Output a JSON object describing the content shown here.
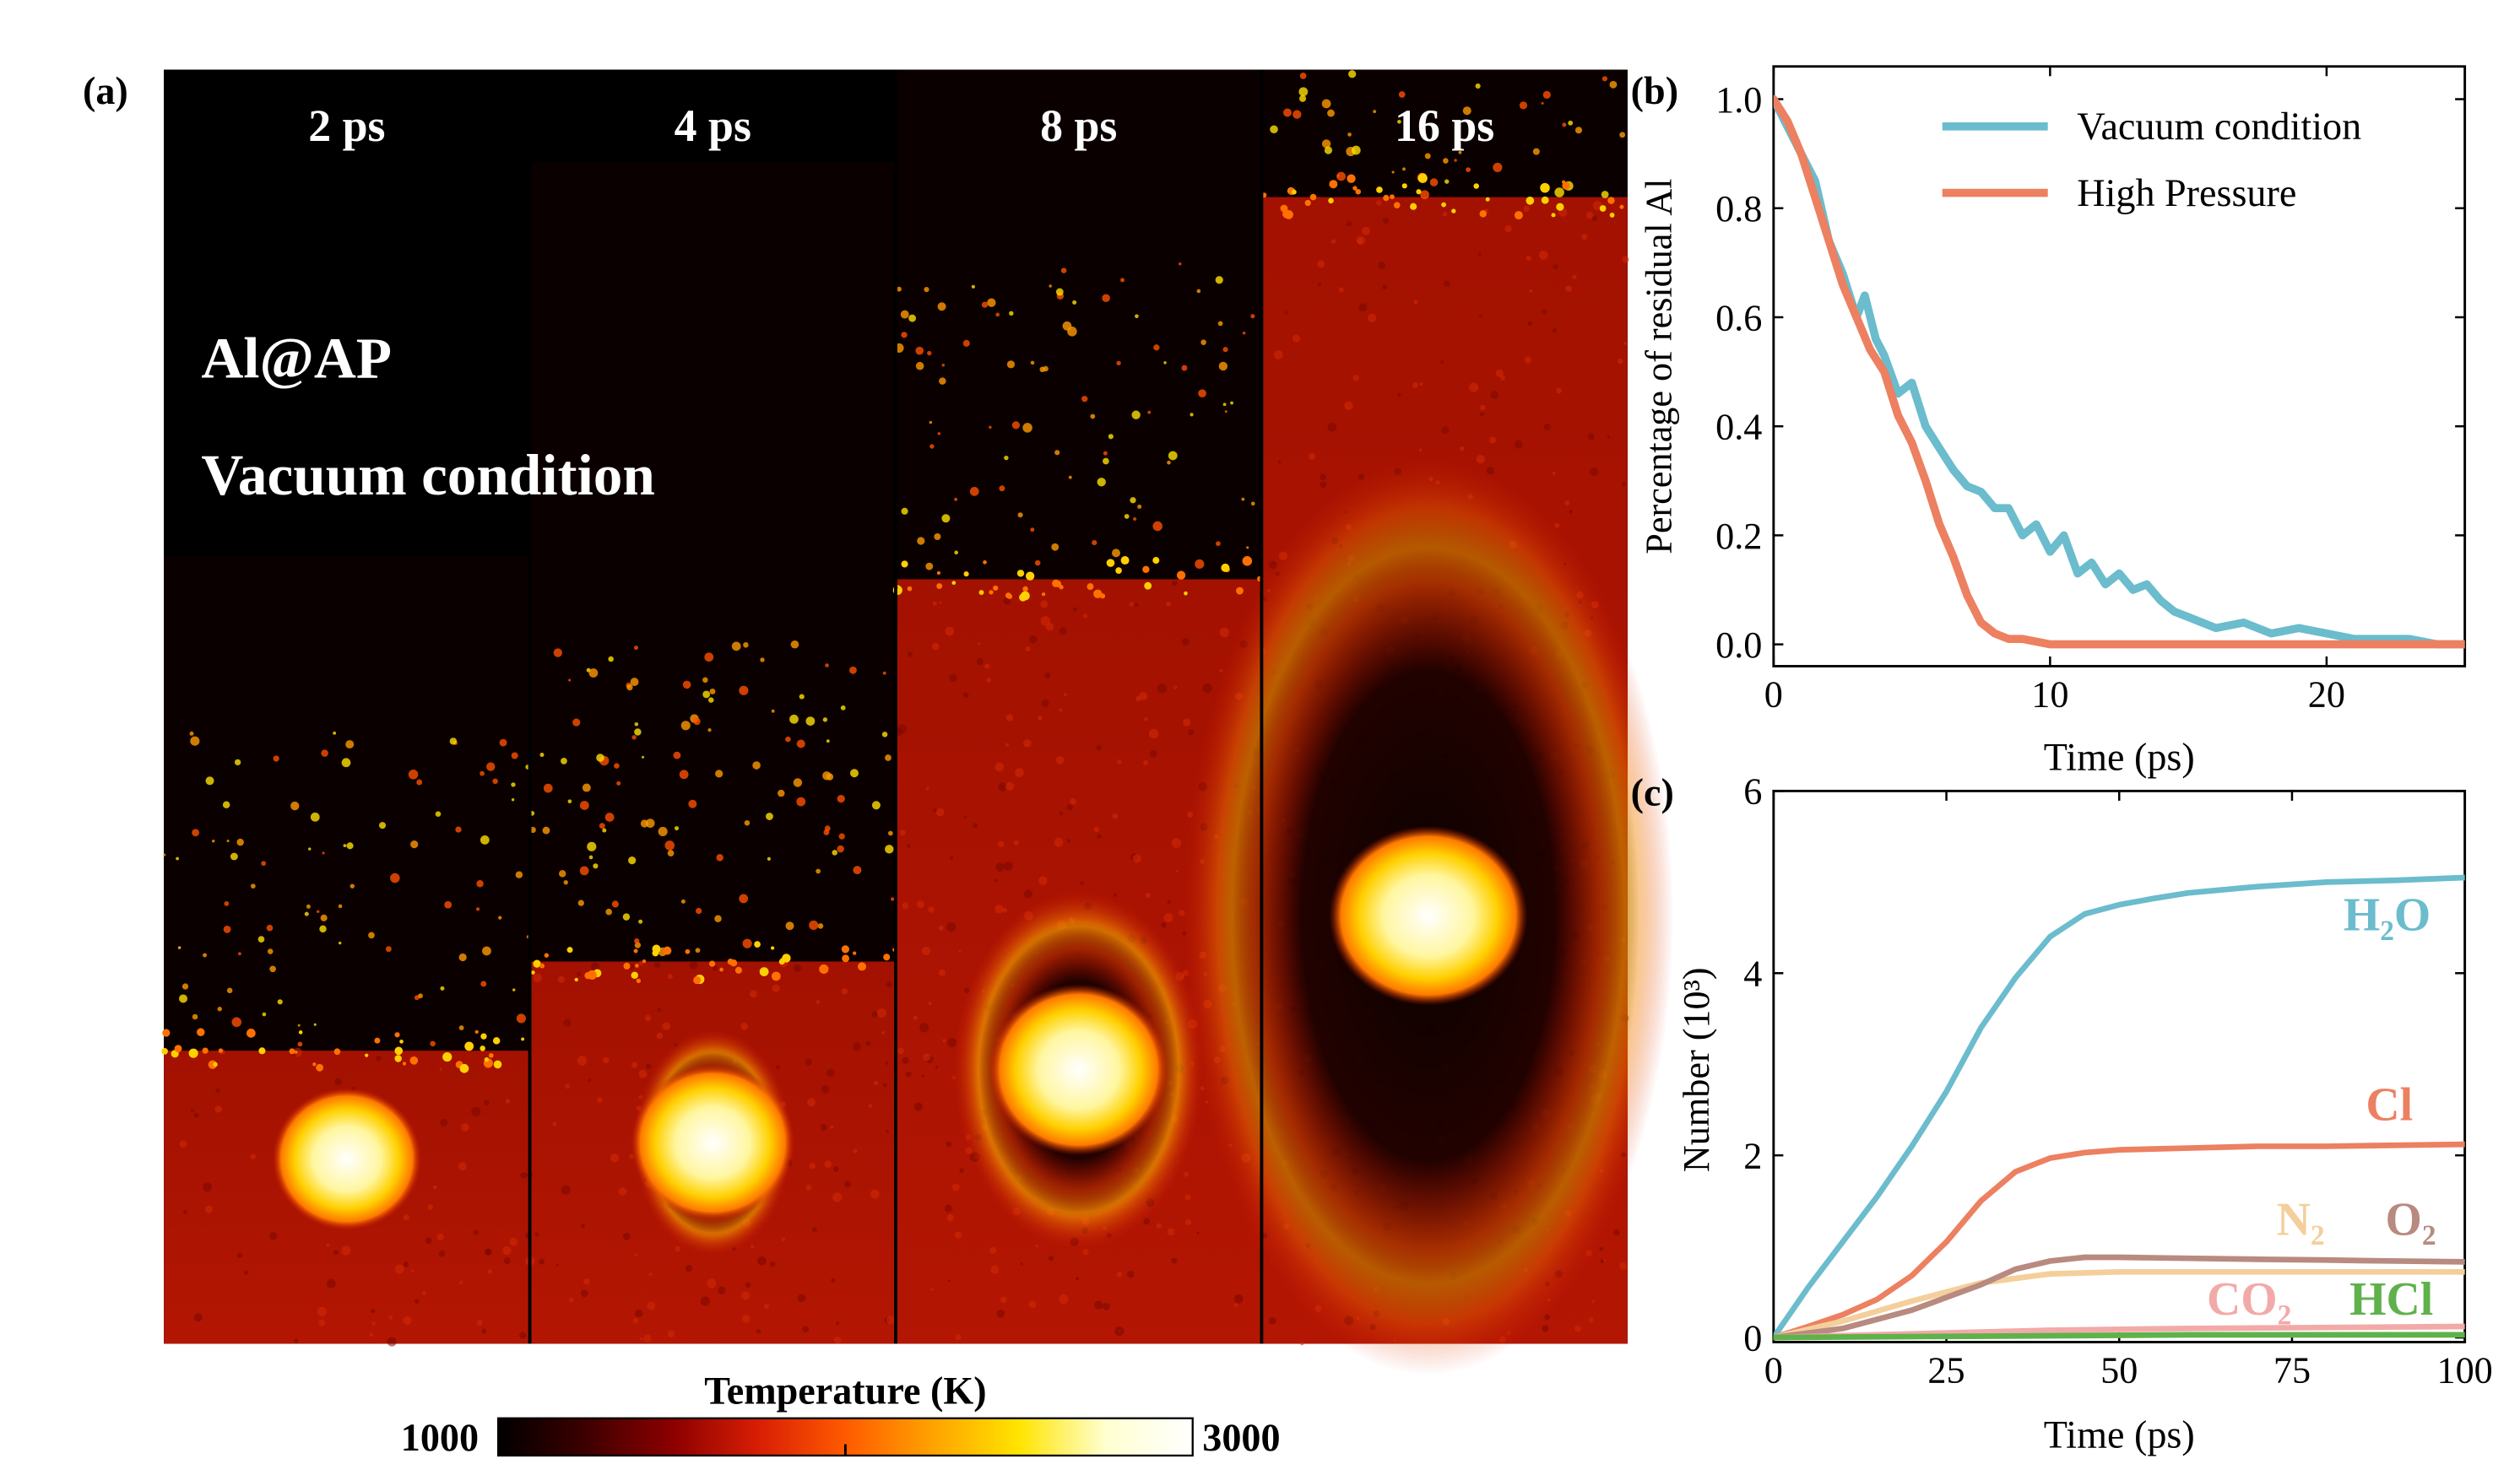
{
  "panel_labels": {
    "a": "(a)",
    "b": "(b)",
    "c": "(c)"
  },
  "panel_a": {
    "frames": [
      {
        "label": "2 ps",
        "hot_spot_scale": 1.0,
        "front_level": 0.77
      },
      {
        "label": "4 ps",
        "hot_spot_scale": 1.1,
        "front_level": 0.7
      },
      {
        "label": "8 ps",
        "hot_spot_scale": 1.2,
        "front_level": 0.4
      },
      {
        "label": "16 ps",
        "hot_spot_scale": 1.4,
        "front_level": 0.1
      }
    ],
    "caption_line1": "Al@AP",
    "caption_line2": "Vacuum condition",
    "colorbar": {
      "title": "Temperature (K)",
      "min_label": "1000",
      "max_label": "3000",
      "stops": [
        "#000000",
        "#3d0000",
        "#8b0000",
        "#d81e05",
        "#ff5a00",
        "#ffa200",
        "#ffe400",
        "#ffffd0",
        "#ffffff"
      ]
    }
  },
  "chart_data": [
    {
      "type": "line",
      "panel": "b",
      "xlabel": "Time (ps)",
      "ylabel": "Percentage of residual Al",
      "xlim": [
        0,
        25
      ],
      "ylim": [
        -0.04,
        1.06
      ],
      "xticks": [
        0,
        10,
        20
      ],
      "yticks": [
        0.0,
        0.2,
        0.4,
        0.6,
        0.8,
        1.0
      ],
      "ytick_labels": [
        "0.0",
        "0.2",
        "0.4",
        "0.6",
        "0.8",
        "1.0"
      ],
      "legend_position": "top-right",
      "series": [
        {
          "name": "Vacuum condition",
          "color": "#6bbccd",
          "x": [
            0,
            0.5,
            1,
            1.5,
            2,
            2.5,
            3,
            3.3,
            3.7,
            4,
            4.5,
            5,
            5.5,
            6,
            6.5,
            7,
            7.5,
            8,
            8.5,
            9,
            9.5,
            10,
            10.5,
            11,
            11.5,
            12,
            12.5,
            13,
            13.5,
            14,
            14.5,
            15,
            16,
            17,
            18,
            19,
            20,
            21,
            22,
            23,
            24,
            25
          ],
          "y": [
            1.0,
            0.95,
            0.9,
            0.85,
            0.74,
            0.68,
            0.6,
            0.64,
            0.56,
            0.53,
            0.46,
            0.48,
            0.4,
            0.36,
            0.32,
            0.29,
            0.28,
            0.25,
            0.25,
            0.2,
            0.22,
            0.17,
            0.2,
            0.13,
            0.15,
            0.11,
            0.13,
            0.1,
            0.11,
            0.08,
            0.06,
            0.05,
            0.03,
            0.04,
            0.02,
            0.03,
            0.02,
            0.01,
            0.01,
            0.01,
            0.0,
            0.0
          ]
        },
        {
          "name": "High Pressure",
          "color": "#ec8060",
          "x": [
            0,
            0.5,
            1,
            1.5,
            2,
            2.5,
            3,
            3.5,
            4,
            4.5,
            5,
            5.5,
            6,
            6.5,
            7,
            7.5,
            8,
            8.5,
            9,
            10,
            12,
            15,
            20,
            25
          ],
          "y": [
            1.0,
            0.96,
            0.9,
            0.82,
            0.74,
            0.66,
            0.6,
            0.54,
            0.5,
            0.42,
            0.37,
            0.3,
            0.22,
            0.16,
            0.09,
            0.04,
            0.02,
            0.01,
            0.01,
            0.0,
            0.0,
            0.0,
            0.0,
            0.0
          ]
        }
      ]
    },
    {
      "type": "line",
      "panel": "c",
      "xlabel": "Time (ps)",
      "ylabel": "Number (10³)",
      "xlim": [
        0,
        100
      ],
      "ylim": [
        -0.05,
        6
      ],
      "xticks": [
        0,
        25,
        50,
        75,
        100
      ],
      "yticks": [
        0,
        2,
        4,
        6
      ],
      "series": [
        {
          "name": "H₂O",
          "color": "#6bbccd",
          "x": [
            0,
            5,
            10,
            15,
            20,
            25,
            30,
            35,
            40,
            45,
            50,
            55,
            60,
            70,
            80,
            90,
            100
          ],
          "y": [
            0.0,
            0.55,
            1.05,
            1.55,
            2.1,
            2.7,
            3.4,
            3.95,
            4.4,
            4.65,
            4.75,
            4.82,
            4.88,
            4.95,
            5.0,
            5.02,
            5.05
          ]
        },
        {
          "name": "Cl",
          "color": "#ec8060",
          "x": [
            0,
            5,
            10,
            15,
            20,
            25,
            30,
            35,
            40,
            45,
            50,
            60,
            70,
            80,
            90,
            100
          ],
          "y": [
            0.0,
            0.12,
            0.25,
            0.42,
            0.68,
            1.05,
            1.5,
            1.82,
            1.97,
            2.03,
            2.06,
            2.08,
            2.1,
            2.1,
            2.11,
            2.12
          ]
        },
        {
          "name": "N₂",
          "color": "#f4cf9b",
          "x": [
            0,
            10,
            20,
            30,
            40,
            50,
            60,
            70,
            80,
            90,
            100
          ],
          "y": [
            0.0,
            0.18,
            0.4,
            0.6,
            0.7,
            0.72,
            0.72,
            0.72,
            0.72,
            0.72,
            0.72
          ]
        },
        {
          "name": "O₂",
          "color": "#b88a80",
          "x": [
            0,
            10,
            20,
            30,
            35,
            40,
            45,
            50,
            60,
            70,
            80,
            90,
            100
          ],
          "y": [
            0.0,
            0.1,
            0.3,
            0.58,
            0.75,
            0.84,
            0.88,
            0.88,
            0.87,
            0.86,
            0.85,
            0.84,
            0.83
          ]
        },
        {
          "name": "CO₂",
          "color": "#f2aaa8",
          "x": [
            0,
            20,
            40,
            60,
            80,
            100
          ],
          "y": [
            0.0,
            0.04,
            0.08,
            0.1,
            0.11,
            0.12
          ]
        },
        {
          "name": "HCl",
          "color": "#5fb24b",
          "x": [
            0,
            20,
            40,
            60,
            80,
            100
          ],
          "y": [
            0.0,
            0.01,
            0.02,
            0.03,
            0.03,
            0.03
          ]
        }
      ]
    }
  ]
}
